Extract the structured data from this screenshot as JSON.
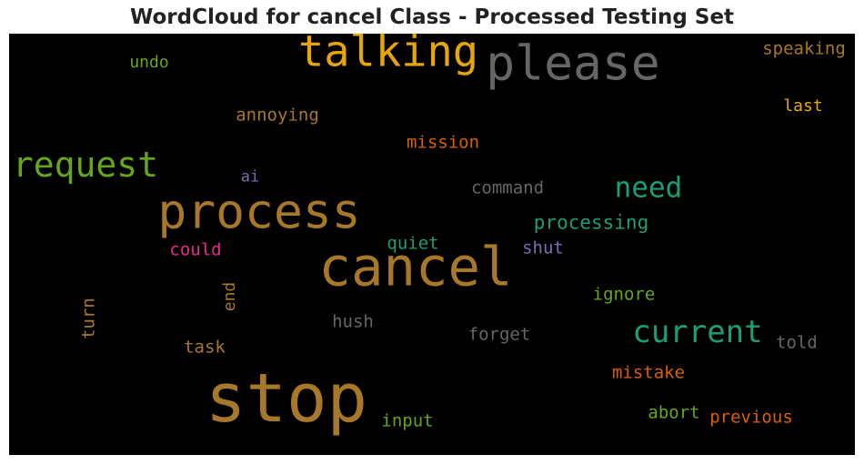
{
  "chart_data": {
    "type": "wordcloud",
    "title": "WordCloud for cancel Class - Processed Testing Set",
    "background": "#000000",
    "words": [
      {
        "text": "stop",
        "weight": 1.0,
        "color": "#a8782a",
        "orientation": "horizontal"
      },
      {
        "text": "cancel",
        "weight": 0.8,
        "color": "#a8782a",
        "orientation": "horizontal"
      },
      {
        "text": "please",
        "weight": 0.72,
        "color": "#666666",
        "orientation": "horizontal"
      },
      {
        "text": "process",
        "weight": 0.72,
        "color": "#a8782a",
        "orientation": "horizontal"
      },
      {
        "text": "talking",
        "weight": 0.64,
        "color": "#e6a50b",
        "orientation": "horizontal"
      },
      {
        "text": "request",
        "weight": 0.52,
        "color": "#66a61e",
        "orientation": "horizontal"
      },
      {
        "text": "current",
        "weight": 0.46,
        "color": "#1b9e77",
        "orientation": "horizontal"
      },
      {
        "text": "need",
        "weight": 0.42,
        "color": "#1b9e77",
        "orientation": "horizontal"
      },
      {
        "text": "processing",
        "weight": 0.36,
        "color": "#1b9e77",
        "orientation": "horizontal"
      },
      {
        "text": "mission",
        "weight": 0.34,
        "color": "#d95f02",
        "orientation": "horizontal"
      },
      {
        "text": "annoying",
        "weight": 0.34,
        "color": "#a8782a",
        "orientation": "horizontal"
      },
      {
        "text": "command",
        "weight": 0.33,
        "color": "#666666",
        "orientation": "horizontal"
      },
      {
        "text": "speaking",
        "weight": 0.33,
        "color": "#a8782a",
        "orientation": "horizontal"
      },
      {
        "text": "last",
        "weight": 0.32,
        "color": "#e6ab02",
        "orientation": "horizontal"
      },
      {
        "text": "undo",
        "weight": 0.32,
        "color": "#66a61e",
        "orientation": "horizontal"
      },
      {
        "text": "ai",
        "weight": 0.3,
        "color": "#7570b3",
        "orientation": "horizontal"
      },
      {
        "text": "could",
        "weight": 0.33,
        "color": "#e7298a",
        "orientation": "horizontal"
      },
      {
        "text": "quiet",
        "weight": 0.33,
        "color": "#1b9e77",
        "orientation": "horizontal"
      },
      {
        "text": "shut",
        "weight": 0.33,
        "color": "#7570b3",
        "orientation": "horizontal"
      },
      {
        "text": "ignore",
        "weight": 0.33,
        "color": "#66a61e",
        "orientation": "horizontal"
      },
      {
        "text": "end",
        "weight": 0.32,
        "color": "#a8782a",
        "orientation": "vertical"
      },
      {
        "text": "turn",
        "weight": 0.33,
        "color": "#a8782a",
        "orientation": "vertical"
      },
      {
        "text": "hush",
        "weight": 0.33,
        "color": "#666666",
        "orientation": "horizontal"
      },
      {
        "text": "forget",
        "weight": 0.33,
        "color": "#666666",
        "orientation": "horizontal"
      },
      {
        "text": "task",
        "weight": 0.33,
        "color": "#a8782a",
        "orientation": "horizontal"
      },
      {
        "text": "told",
        "weight": 0.33,
        "color": "#666666",
        "orientation": "horizontal"
      },
      {
        "text": "mistake",
        "weight": 0.33,
        "color": "#d95f02",
        "orientation": "horizontal"
      },
      {
        "text": "abort",
        "weight": 0.33,
        "color": "#66a61e",
        "orientation": "horizontal"
      },
      {
        "text": "previous",
        "weight": 0.33,
        "color": "#d95f02",
        "orientation": "horizontal"
      },
      {
        "text": "input",
        "weight": 0.33,
        "color": "#66a61e",
        "orientation": "horizontal"
      }
    ]
  }
}
